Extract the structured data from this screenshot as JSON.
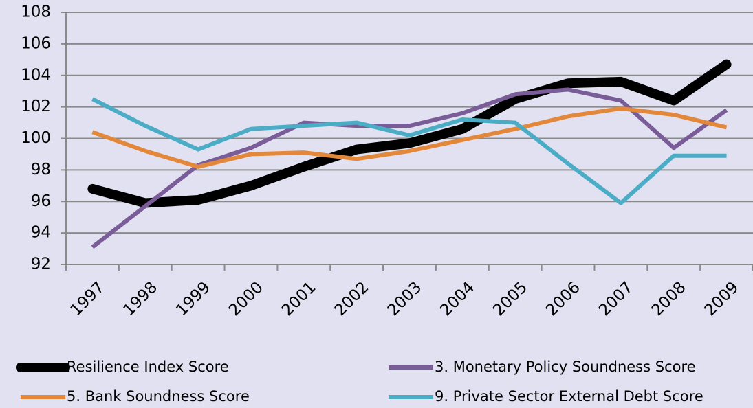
{
  "chart_data": {
    "type": "line",
    "categories": [
      "1997",
      "1998",
      "1999",
      "2000",
      "2001",
      "2002",
      "2003",
      "2004",
      "2005",
      "2006",
      "2007",
      "2008",
      "2009"
    ],
    "series": [
      {
        "name": "Resilience Index Score",
        "color": "#000000",
        "values": [
          96.8,
          95.9,
          96.1,
          97.0,
          98.2,
          99.3,
          99.7,
          100.6,
          102.5,
          103.5,
          103.6,
          102.4,
          104.7
        ]
      },
      {
        "name": "3. Monetary Policy Soundness Score",
        "color": "#7a5c99",
        "values": [
          93.1,
          95.7,
          98.3,
          99.4,
          101.0,
          100.8,
          100.8,
          101.6,
          102.8,
          103.1,
          102.4,
          99.4,
          101.8
        ]
      },
      {
        "name": "5. Bank Soundness Score",
        "color": "#e3883a",
        "values": [
          100.4,
          99.2,
          98.2,
          99.0,
          99.1,
          98.7,
          99.2,
          99.9,
          100.6,
          101.4,
          101.9,
          101.5,
          100.7
        ]
      },
      {
        "name": "9. Private Sector External Debt Score",
        "color": "#4bacc6",
        "values": [
          102.5,
          100.8,
          99.3,
          100.6,
          100.8,
          101.0,
          100.2,
          101.2,
          101.0,
          98.4,
          95.9,
          98.9,
          98.9
        ]
      }
    ],
    "ylim": [
      92,
      108
    ],
    "yticks": [
      92,
      94,
      96,
      98,
      100,
      102,
      104,
      106,
      108
    ],
    "grid": true,
    "legend": "bottom"
  }
}
